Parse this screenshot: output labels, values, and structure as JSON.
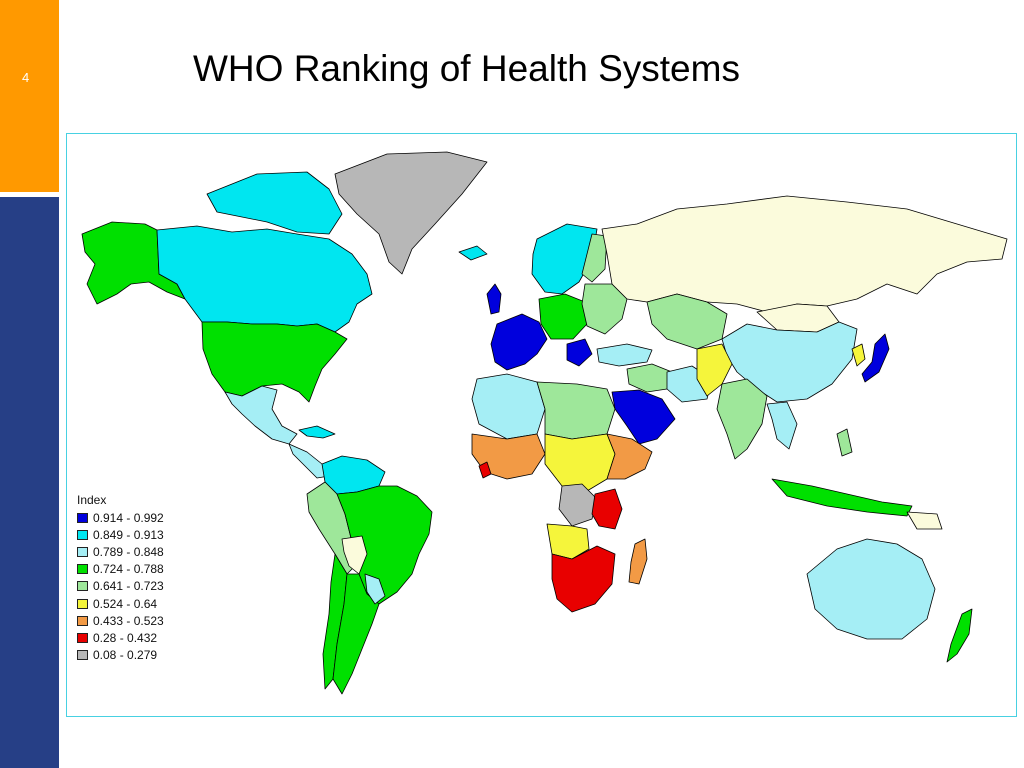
{
  "slide": {
    "number": "4",
    "title": "WHO Ranking of Health Systems"
  },
  "legend": {
    "title": "Index",
    "items": [
      {
        "label": "0.914 - 0.992",
        "color": "#0000dd"
      },
      {
        "label": "0.849 - 0.913",
        "color": "#00e6f0"
      },
      {
        "label": "0.789 - 0.848",
        "color": "#a5eef5"
      },
      {
        "label": "0.724 - 0.788",
        "color": "#00e000"
      },
      {
        "label": "0.641 - 0.723",
        "color": "#9ee79a"
      },
      {
        "label": "0.524 - 0.64",
        "color": "#f5f53b"
      },
      {
        "label": "0.433 - 0.523",
        "color": "#f29a45"
      },
      {
        "label": "0.28 - 0.432",
        "color": "#e80000"
      },
      {
        "label": "0.08 - 0.279",
        "color": "#b7b7b7"
      }
    ]
  },
  "colors": {
    "no_data": "#fbfbdc",
    "accent_orange": "#ff9900",
    "accent_blue": "#263f86",
    "frame_border": "#47d1e2"
  }
}
